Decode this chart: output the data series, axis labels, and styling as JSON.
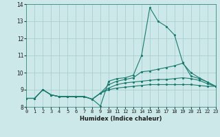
{
  "xlabel": "Humidex (Indice chaleur)",
  "bg_color": "#cce8e8",
  "line_color": "#1a7a6e",
  "grid_color": "#aacfcf",
  "x": [
    0,
    1,
    2,
    3,
    4,
    5,
    6,
    7,
    8,
    9,
    10,
    11,
    12,
    13,
    14,
    15,
    16,
    17,
    18,
    19,
    20,
    21,
    22,
    23
  ],
  "line1": [
    8.5,
    8.5,
    9.0,
    8.7,
    8.6,
    8.6,
    8.6,
    8.6,
    8.45,
    8.05,
    9.5,
    9.65,
    9.7,
    9.85,
    11.0,
    13.8,
    13.0,
    12.7,
    12.2,
    10.6,
    9.8,
    9.65,
    9.45,
    9.2
  ],
  "line2": [
    8.5,
    8.5,
    9.0,
    8.7,
    8.6,
    8.6,
    8.6,
    8.6,
    8.45,
    8.8,
    9.3,
    9.5,
    9.6,
    9.7,
    10.05,
    10.1,
    10.2,
    10.3,
    10.4,
    10.55,
    10.0,
    9.7,
    9.45,
    9.2
  ],
  "line3": [
    8.5,
    8.5,
    9.0,
    8.7,
    8.6,
    8.6,
    8.6,
    8.6,
    8.45,
    8.8,
    9.1,
    9.3,
    9.4,
    9.45,
    9.5,
    9.55,
    9.6,
    9.6,
    9.65,
    9.7,
    9.65,
    9.55,
    9.35,
    9.2
  ],
  "line4": [
    8.5,
    8.5,
    9.0,
    8.7,
    8.6,
    8.6,
    8.6,
    8.6,
    8.45,
    8.8,
    9.0,
    9.1,
    9.15,
    9.2,
    9.25,
    9.3,
    9.3,
    9.3,
    9.3,
    9.3,
    9.3,
    9.25,
    9.2,
    9.2
  ],
  "ylim": [
    8.0,
    14.0
  ],
  "yticks": [
    8,
    9,
    10,
    11,
    12,
    13,
    14
  ],
  "xlim": [
    0,
    23
  ],
  "xticks": [
    0,
    1,
    2,
    3,
    4,
    5,
    6,
    7,
    8,
    9,
    10,
    11,
    12,
    13,
    14,
    15,
    16,
    17,
    18,
    19,
    20,
    21,
    22,
    23
  ]
}
